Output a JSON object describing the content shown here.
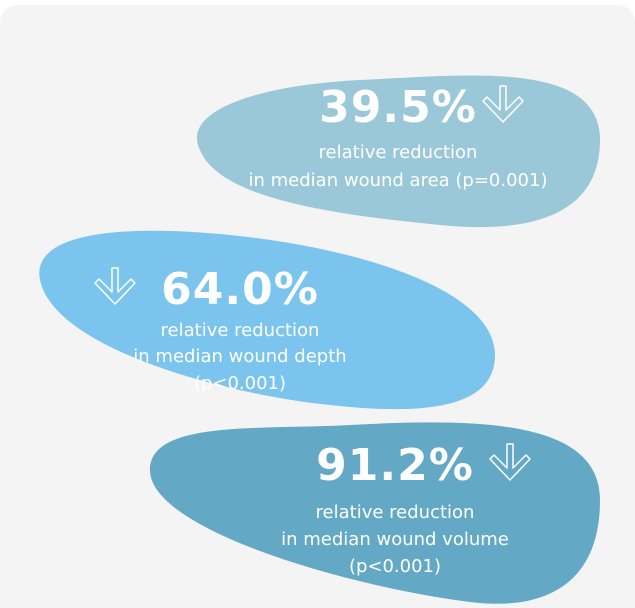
{
  "items": [
    {
      "value": "39.5%",
      "lines": [
        "relative reduction",
        "in median wound area (p=0.001)"
      ]
    },
    {
      "value": "64.0%",
      "lines": [
        "relative reduction",
        "in median wound depth",
        "(p<0.001)"
      ]
    },
    {
      "value": "91.2%",
      "lines": [
        "relative reduction",
        "in median wound volume",
        "(p<0.001)"
      ]
    }
  ]
}
